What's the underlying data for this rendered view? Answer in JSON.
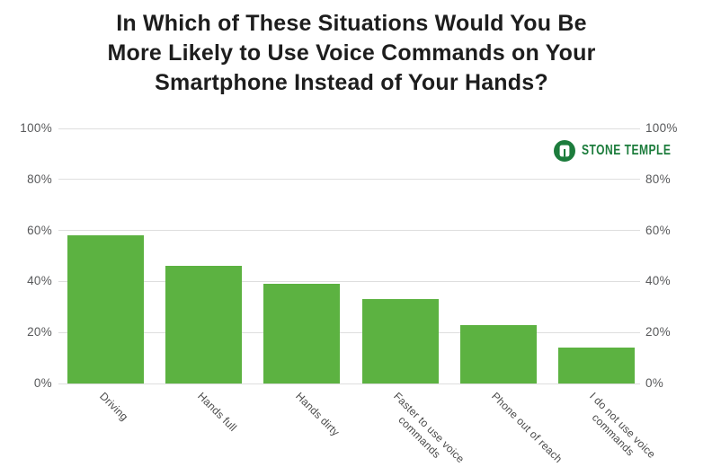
{
  "title": "In Which of These Situations Would You Be\nMore Likely to Use Voice Commands on Your\nSmartphone Instead of Your Hands?",
  "brand": {
    "name": "STONE TEMPLE",
    "icon": "stone-temple-door-logo",
    "color": "#1c7c3c"
  },
  "colors": {
    "bar": "#5cb241",
    "grid": "#dedede",
    "axis_text": "#58595b",
    "category_text": "#4a4a4a",
    "title_text": "#1d1d1d",
    "background": "#ffffff"
  },
  "chart_data": {
    "type": "bar",
    "title": "In Which of These Situations Would You Be More Likely to Use Voice Commands on Your Smartphone Instead of Your Hands?",
    "categories": [
      "Driving",
      "Hands full",
      "Hands dirty",
      "Faster to use voice commands",
      "Phone out of reach",
      "I do not use voice commands"
    ],
    "category_label_lines": [
      [
        "Driving"
      ],
      [
        "Hands full"
      ],
      [
        "Hands dirty"
      ],
      [
        "Faster to use voice",
        "commands"
      ],
      [
        "Phone out of reach"
      ],
      [
        "I do not use voice",
        "commands"
      ]
    ],
    "values": [
      58,
      46,
      39,
      33,
      23,
      14
    ],
    "unit": "%",
    "ylim": [
      0,
      100
    ],
    "y_ticks": [
      100,
      80,
      60,
      40,
      20,
      0
    ],
    "y_tick_labels": [
      "100%",
      "80%",
      "60%",
      "40%",
      "20%",
      "0%"
    ],
    "grid": true,
    "legend": "none",
    "dual_y_axis": true,
    "x_label_rotation_deg": 45,
    "bar_color": "#5cb241"
  }
}
